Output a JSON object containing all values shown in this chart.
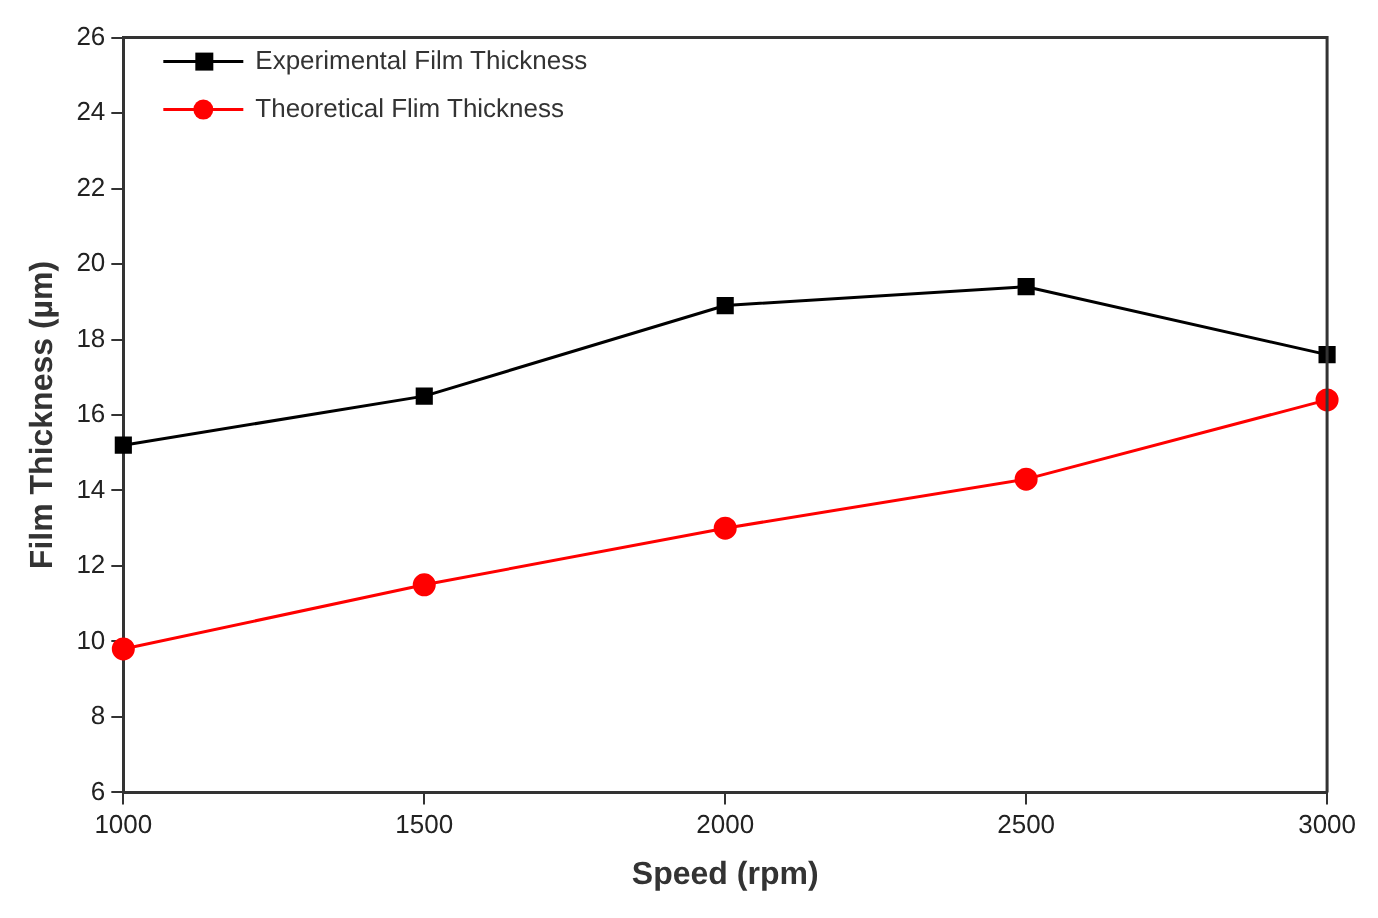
{
  "chart_data": {
    "type": "line",
    "xlabel": "Speed (rpm)",
    "ylabel": "Film Thickness (µm)",
    "x": [
      1000,
      1500,
      2000,
      2500,
      3000
    ],
    "series": [
      {
        "name": "Experimental Film Thickness",
        "color": "#000000",
        "marker": "square",
        "values": [
          15.2,
          16.5,
          18.9,
          19.4,
          17.6
        ]
      },
      {
        "name": "Theoretical Flim Thickness",
        "color": "#ff0000",
        "marker": "circle",
        "values": [
          9.8,
          11.5,
          13.0,
          14.3,
          16.4
        ]
      }
    ],
    "xlim": [
      1000,
      3000
    ],
    "xticks": [
      1000,
      1500,
      2000,
      2500,
      3000
    ],
    "ylim": [
      6,
      26
    ],
    "yticks": [
      6,
      8,
      10,
      12,
      14,
      16,
      18,
      20,
      22,
      24,
      26
    ],
    "grid": false,
    "legend": "top left",
    "line_style": "solid"
  }
}
